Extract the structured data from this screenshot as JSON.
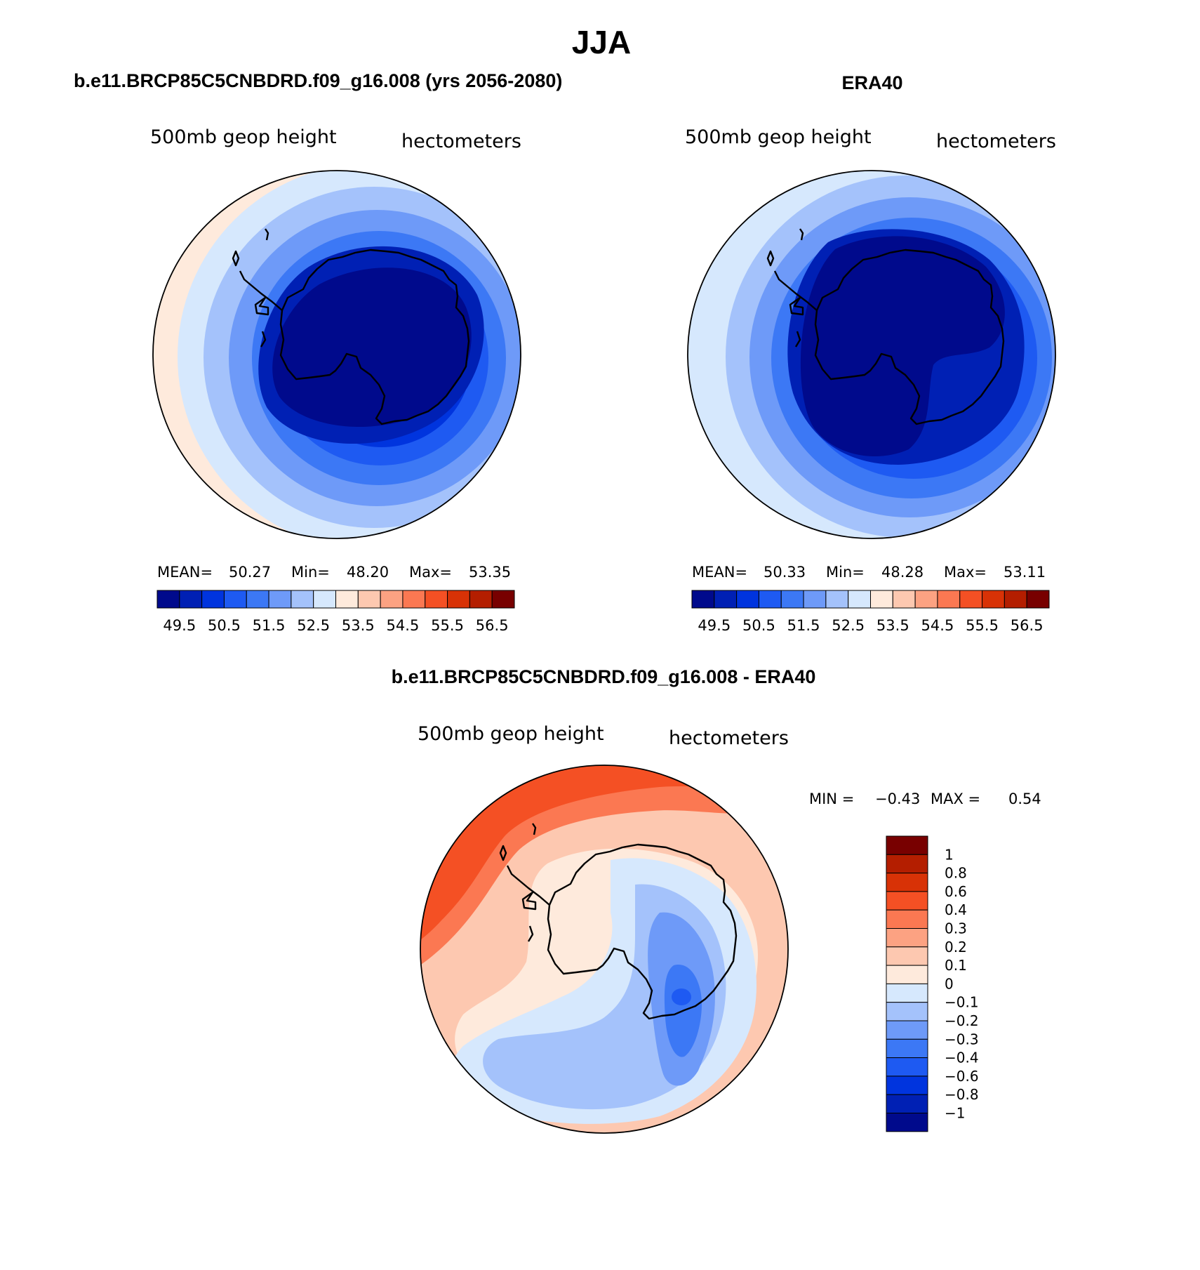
{
  "figure": {
    "title": "JJA"
  },
  "palettes": {
    "absolute": [
      "#000a8c",
      "#0020b4",
      "#0034de",
      "#1e5af2",
      "#3c78f5",
      "#6e9af8",
      "#a4c2fb",
      "#d6e8fd",
      "#feeadc",
      "#fdc8b0",
      "#fca282",
      "#fb7852",
      "#f45024",
      "#d83206",
      "#b41e00",
      "#780000"
    ],
    "difference": [
      "#000a8c",
      "#0020b4",
      "#0034de",
      "#1e5af2",
      "#3c78f5",
      "#6e9af8",
      "#a4c2fb",
      "#d6e8fd",
      "#feeadc",
      "#fdc8b0",
      "#fca282",
      "#fb7852",
      "#f45024",
      "#d83206",
      "#b41e00",
      "#780000"
    ]
  },
  "panels": {
    "model": {
      "header": "b.e11.BRCP85C5CNBDRD.f09_g16.008 (yrs 2056-2080)",
      "variable": "500mb geop height",
      "units": "hectometers",
      "stats": {
        "mean_label": "MEAN=",
        "mean": "50.27",
        "min_label": "Min=",
        "min": "48.20",
        "max_label": "Max=",
        "max": "53.35"
      },
      "colorbar_ticks": [
        "49.5",
        "50.5",
        "51.5",
        "52.5",
        "53.5",
        "54.5",
        "55.5",
        "56.5"
      ]
    },
    "obs": {
      "header": "ERA40",
      "variable": "500mb geop height",
      "units": "hectometers",
      "stats": {
        "mean_label": "MEAN=",
        "mean": "50.33",
        "min_label": "Min=",
        "min": "48.28",
        "max_label": "Max=",
        "max": "53.11"
      },
      "colorbar_ticks": [
        "49.5",
        "50.5",
        "51.5",
        "52.5",
        "53.5",
        "54.5",
        "55.5",
        "56.5"
      ]
    },
    "diff": {
      "header": "b.e11.BRCP85C5CNBDRD.f09_g16.008 - ERA40",
      "variable": "500mb geop height",
      "units": "hectometers",
      "stats": {
        "min_label": "MIN =",
        "min": "−0.43",
        "max_label": "MAX =",
        "max": "0.54"
      },
      "colorbar_ticks": [
        "1",
        "0.8",
        "0.6",
        "0.4",
        "0.3",
        "0.2",
        "0.1",
        "0",
        "−0.1",
        "−0.2",
        "−0.3",
        "−0.4",
        "−0.6",
        "−0.8",
        "−1"
      ]
    }
  }
}
